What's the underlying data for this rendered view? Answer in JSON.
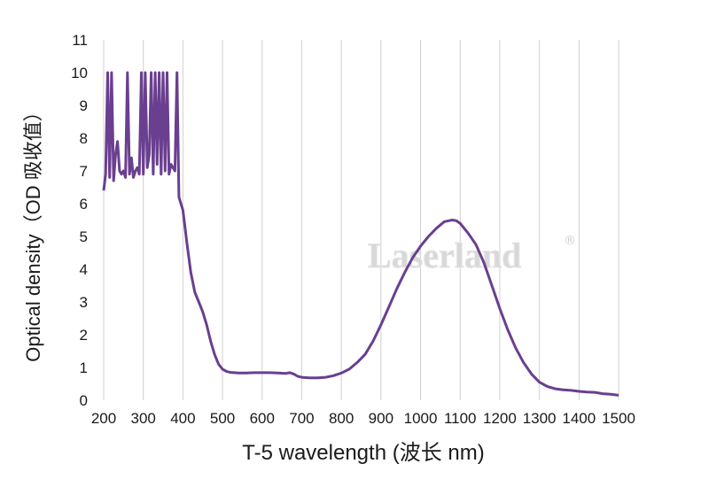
{
  "chart_data": {
    "type": "line",
    "xlabel": "T-5 wavelength (波长 nm)",
    "ylabel": "Optical density（OD 吸收值）",
    "xlim": [
      200,
      1500
    ],
    "ylim": [
      0,
      11
    ],
    "xticks": [
      "200",
      "300",
      "400",
      "500",
      "600",
      "700",
      "800",
      "900",
      "1000",
      "1100",
      "1200",
      "1300",
      "1400",
      "1500"
    ],
    "yticks": [
      "0",
      "1",
      "2",
      "3",
      "4",
      "5",
      "6",
      "7",
      "8",
      "9",
      "10",
      "11"
    ],
    "grid": "vertical",
    "watermark": "Laserland",
    "watermark_mark": "®",
    "series": [
      {
        "color": "#6a3f8f",
        "x": [
          200,
          205,
          210,
          215,
          220,
          225,
          230,
          235,
          240,
          245,
          250,
          255,
          260,
          265,
          270,
          275,
          280,
          285,
          290,
          295,
          300,
          305,
          310,
          315,
          320,
          325,
          330,
          335,
          340,
          345,
          350,
          355,
          360,
          365,
          370,
          375,
          380,
          385,
          390,
          400,
          410,
          420,
          430,
          440,
          450,
          460,
          470,
          480,
          490,
          500,
          510,
          520,
          530,
          540,
          560,
          580,
          600,
          620,
          640,
          660,
          670,
          680,
          690,
          700,
          720,
          740,
          760,
          780,
          800,
          820,
          840,
          860,
          880,
          900,
          920,
          940,
          960,
          980,
          1000,
          1020,
          1040,
          1060,
          1080,
          1090,
          1100,
          1110,
          1120,
          1140,
          1160,
          1180,
          1200,
          1220,
          1240,
          1260,
          1280,
          1300,
          1320,
          1340,
          1360,
          1380,
          1400,
          1420,
          1440,
          1460,
          1480,
          1500
        ],
        "y": [
          6.4,
          6.9,
          10.0,
          6.8,
          10.0,
          6.7,
          7.5,
          7.9,
          7.0,
          6.9,
          7.0,
          6.8,
          10.0,
          6.9,
          7.4,
          6.8,
          7.0,
          7.1,
          6.9,
          10.0,
          6.9,
          10.0,
          7.1,
          7.5,
          10.0,
          6.9,
          10.0,
          7.2,
          10.0,
          6.9,
          10.0,
          7.0,
          10.0,
          6.9,
          7.2,
          7.1,
          7.0,
          10.0,
          6.2,
          5.8,
          4.8,
          3.9,
          3.3,
          3.0,
          2.7,
          2.3,
          1.8,
          1.4,
          1.1,
          0.95,
          0.88,
          0.85,
          0.84,
          0.83,
          0.83,
          0.84,
          0.84,
          0.84,
          0.83,
          0.82,
          0.84,
          0.8,
          0.73,
          0.7,
          0.68,
          0.68,
          0.7,
          0.75,
          0.83,
          0.95,
          1.15,
          1.4,
          1.8,
          2.3,
          2.85,
          3.4,
          3.9,
          4.35,
          4.7,
          5.0,
          5.25,
          5.45,
          5.5,
          5.48,
          5.4,
          5.25,
          5.1,
          4.75,
          4.2,
          3.5,
          2.8,
          2.15,
          1.6,
          1.15,
          0.8,
          0.55,
          0.42,
          0.35,
          0.32,
          0.3,
          0.27,
          0.25,
          0.24,
          0.2,
          0.18,
          0.15
        ]
      }
    ]
  }
}
